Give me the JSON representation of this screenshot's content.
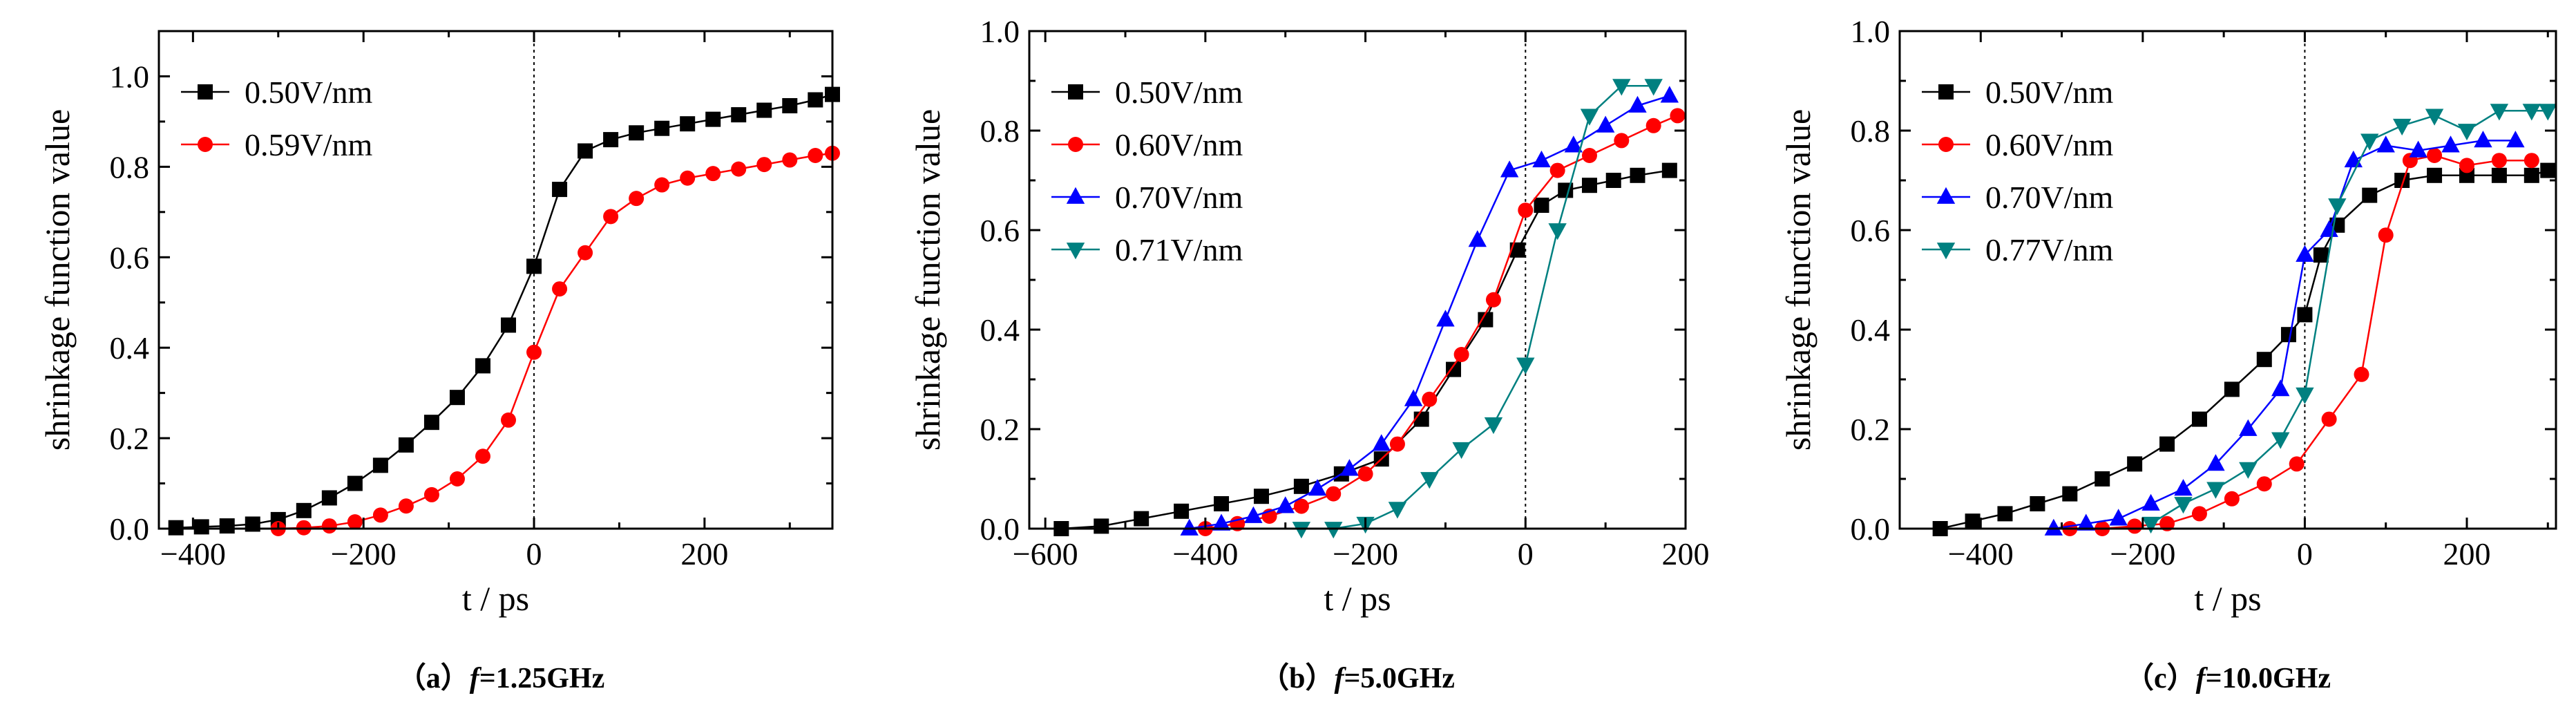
{
  "chart_data": [
    {
      "type": "line",
      "panel": "a",
      "caption": {
        "prefix": "（a）",
        "var": "f",
        "eq": "=1.25GHz"
      },
      "xlabel": "t / ps",
      "ylabel": "shrinkage function value",
      "xlim": [
        -440,
        350
      ],
      "ylim": [
        0,
        1.1
      ],
      "xticks": [
        -400,
        -200,
        0,
        200
      ],
      "yticks": [
        0.0,
        0.2,
        0.4,
        0.6,
        0.8,
        1.0
      ],
      "ytick_labels": [
        "0.0",
        "0.2",
        "0.4",
        "0.6",
        "0.8",
        "1.0"
      ],
      "vline_x": 0,
      "legend_position": "top-left",
      "series": [
        {
          "name": "0.50V/nm",
          "color": "#000000",
          "marker": "square",
          "x": [
            -420,
            -390,
            -360,
            -330,
            -300,
            -270,
            -240,
            -210,
            -180,
            -150,
            -120,
            -90,
            -60,
            -30,
            0,
            30,
            60,
            90,
            120,
            150,
            180,
            210,
            240,
            270,
            300,
            330,
            350
          ],
          "y": [
            0.002,
            0.004,
            0.006,
            0.01,
            0.02,
            0.04,
            0.068,
            0.1,
            0.14,
            0.185,
            0.235,
            0.29,
            0.36,
            0.45,
            0.58,
            0.75,
            0.835,
            0.86,
            0.875,
            0.885,
            0.895,
            0.905,
            0.915,
            0.925,
            0.935,
            0.948,
            0.96
          ]
        },
        {
          "name": "0.59V/nm",
          "color": "#ff0000",
          "marker": "circle",
          "x": [
            -300,
            -270,
            -240,
            -210,
            -180,
            -150,
            -120,
            -90,
            -60,
            -30,
            0,
            30,
            60,
            90,
            120,
            150,
            180,
            210,
            240,
            270,
            300,
            330,
            350
          ],
          "y": [
            0.0,
            0.002,
            0.006,
            0.015,
            0.03,
            0.05,
            0.075,
            0.11,
            0.16,
            0.24,
            0.39,
            0.53,
            0.61,
            0.69,
            0.73,
            0.76,
            0.775,
            0.785,
            0.795,
            0.805,
            0.815,
            0.825,
            0.83
          ]
        }
      ]
    },
    {
      "type": "line",
      "panel": "b",
      "caption": {
        "prefix": "（b）",
        "var": "f",
        "eq": "=5.0GHz"
      },
      "xlabel": "t / ps",
      "ylabel": "shrinkage function value",
      "xlim": [
        -620,
        200
      ],
      "ylim": [
        0,
        1.0
      ],
      "xticks": [
        -600,
        -400,
        -200,
        0,
        200
      ],
      "yticks": [
        0.0,
        0.2,
        0.4,
        0.6,
        0.8,
        1.0
      ],
      "ytick_labels": [
        "0.0",
        "0.2",
        "0.4",
        "0.6",
        "0.8",
        "1.0"
      ],
      "vline_x": 0,
      "legend_position": "top-left",
      "series": [
        {
          "name": "0.50V/nm",
          "color": "#000000",
          "marker": "square",
          "x": [
            -580,
            -530,
            -480,
            -430,
            -380,
            -330,
            -280,
            -230,
            -180,
            -130,
            -90,
            -50,
            -10,
            20,
            50,
            80,
            110,
            140,
            180
          ],
          "y": [
            0.0,
            0.005,
            0.02,
            0.035,
            0.05,
            0.065,
            0.085,
            0.11,
            0.14,
            0.22,
            0.32,
            0.42,
            0.56,
            0.65,
            0.68,
            0.69,
            0.7,
            0.71,
            0.72
          ]
        },
        {
          "name": "0.60V/nm",
          "color": "#ff0000",
          "marker": "circle",
          "x": [
            -400,
            -360,
            -320,
            -280,
            -240,
            -200,
            -160,
            -120,
            -80,
            -40,
            0,
            40,
            80,
            120,
            160,
            190
          ],
          "y": [
            0.0,
            0.01,
            0.025,
            0.045,
            0.07,
            0.11,
            0.17,
            0.26,
            0.35,
            0.46,
            0.64,
            0.72,
            0.75,
            0.78,
            0.81,
            0.83
          ]
        },
        {
          "name": "0.70V/nm",
          "color": "#0000ff",
          "marker": "triangle-up",
          "x": [
            -420,
            -380,
            -340,
            -300,
            -260,
            -220,
            -180,
            -140,
            -100,
            -60,
            -20,
            20,
            60,
            100,
            140,
            180
          ],
          "y": [
            0.0,
            0.01,
            0.025,
            0.045,
            0.08,
            0.12,
            0.17,
            0.26,
            0.42,
            0.58,
            0.72,
            0.74,
            0.77,
            0.81,
            0.85,
            0.87
          ]
        },
        {
          "name": "0.71V/nm",
          "color": "#008080",
          "marker": "triangle-down",
          "x": [
            -280,
            -240,
            -200,
            -160,
            -120,
            -80,
            -40,
            0,
            40,
            80,
            120,
            160
          ],
          "y": [
            0.0,
            0.0,
            0.01,
            0.04,
            0.1,
            0.16,
            0.21,
            0.33,
            0.6,
            0.83,
            0.89,
            0.89
          ]
        }
      ]
    },
    {
      "type": "line",
      "panel": "c",
      "caption": {
        "prefix": "（c）",
        "var": "f",
        "eq": "=10.0GHz"
      },
      "xlabel": "t / ps",
      "ylabel": "shrinkage function value",
      "xlim": [
        -500,
        310
      ],
      "ylim": [
        0,
        1.0
      ],
      "xticks": [
        -400,
        -200,
        0,
        200
      ],
      "yticks": [
        0.0,
        0.2,
        0.4,
        0.6,
        0.8,
        1.0
      ],
      "ytick_labels": [
        "0.0",
        "0.2",
        "0.4",
        "0.6",
        "0.8",
        "1.0"
      ],
      "vline_x": 0,
      "legend_position": "top-left",
      "series": [
        {
          "name": "0.50V/nm",
          "color": "#000000",
          "marker": "square",
          "x": [
            -450,
            -410,
            -370,
            -330,
            -290,
            -250,
            -210,
            -170,
            -130,
            -90,
            -50,
            -20,
            0,
            20,
            40,
            80,
            120,
            160,
            200,
            240,
            280,
            300
          ],
          "y": [
            0.0,
            0.015,
            0.03,
            0.05,
            0.07,
            0.1,
            0.13,
            0.17,
            0.22,
            0.28,
            0.34,
            0.39,
            0.43,
            0.55,
            0.61,
            0.67,
            0.7,
            0.71,
            0.71,
            0.71,
            0.71,
            0.72
          ]
        },
        {
          "name": "0.60V/nm",
          "color": "#ff0000",
          "marker": "circle",
          "x": [
            -290,
            -250,
            -210,
            -170,
            -130,
            -90,
            -50,
            -10,
            30,
            70,
            100,
            130,
            160,
            200,
            240,
            280
          ],
          "y": [
            0.0,
            0.0,
            0.005,
            0.01,
            0.03,
            0.06,
            0.09,
            0.13,
            0.22,
            0.31,
            0.59,
            0.74,
            0.75,
            0.73,
            0.74,
            0.74
          ]
        },
        {
          "name": "0.70V/nm",
          "color": "#0000ff",
          "marker": "triangle-up",
          "x": [
            -310,
            -270,
            -230,
            -190,
            -150,
            -110,
            -70,
            -30,
            0,
            30,
            60,
            100,
            140,
            180,
            220,
            260
          ],
          "y": [
            0.0,
            0.01,
            0.02,
            0.05,
            0.08,
            0.13,
            0.2,
            0.28,
            0.55,
            0.6,
            0.74,
            0.77,
            0.76,
            0.77,
            0.78,
            0.78
          ]
        },
        {
          "name": "0.77V/nm",
          "color": "#008080",
          "marker": "triangle-down",
          "x": [
            -190,
            -150,
            -110,
            -70,
            -30,
            0,
            40,
            80,
            120,
            160,
            200,
            240,
            280,
            300
          ],
          "y": [
            0.01,
            0.05,
            0.08,
            0.12,
            0.18,
            0.27,
            0.65,
            0.78,
            0.81,
            0.83,
            0.8,
            0.84,
            0.84,
            0.84
          ]
        }
      ]
    }
  ]
}
